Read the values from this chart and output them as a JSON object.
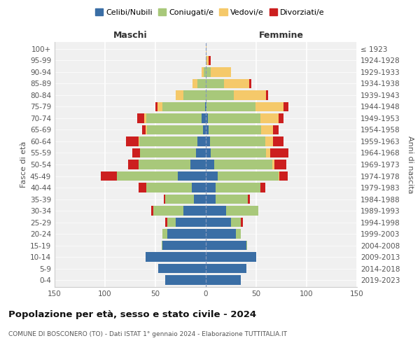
{
  "age_groups": [
    "0-4",
    "5-9",
    "10-14",
    "15-19",
    "20-24",
    "25-29",
    "30-34",
    "35-39",
    "40-44",
    "45-49",
    "50-54",
    "55-59",
    "60-64",
    "65-69",
    "70-74",
    "75-79",
    "80-84",
    "85-89",
    "90-94",
    "95-99",
    "100+"
  ],
  "birth_years": [
    "2019-2023",
    "2014-2018",
    "2009-2013",
    "2004-2008",
    "1999-2003",
    "1994-1998",
    "1989-1993",
    "1984-1988",
    "1979-1983",
    "1974-1978",
    "1969-1973",
    "1964-1968",
    "1959-1963",
    "1954-1958",
    "1949-1953",
    "1944-1948",
    "1939-1943",
    "1934-1938",
    "1929-1933",
    "1924-1928",
    "≤ 1923"
  ],
  "male": {
    "celibi": [
      40,
      47,
      60,
      43,
      38,
      30,
      22,
      12,
      14,
      28,
      15,
      10,
      8,
      3,
      4,
      1,
      0,
      0,
      0,
      0,
      0
    ],
    "coniugati": [
      0,
      0,
      0,
      1,
      5,
      8,
      30,
      28,
      45,
      60,
      52,
      55,
      58,
      55,
      55,
      42,
      22,
      8,
      2,
      0,
      0
    ],
    "vedovi": [
      0,
      0,
      0,
      0,
      0,
      0,
      0,
      0,
      0,
      0,
      0,
      0,
      1,
      2,
      2,
      5,
      8,
      5,
      2,
      0,
      0
    ],
    "divorziati": [
      0,
      0,
      0,
      0,
      0,
      2,
      2,
      2,
      8,
      16,
      10,
      8,
      12,
      3,
      7,
      2,
      0,
      0,
      0,
      0,
      0
    ]
  },
  "female": {
    "nubili": [
      35,
      40,
      50,
      40,
      30,
      25,
      20,
      10,
      10,
      12,
      8,
      5,
      4,
      3,
      2,
      1,
      0,
      0,
      0,
      0,
      0
    ],
    "coniugate": [
      0,
      0,
      0,
      1,
      5,
      10,
      32,
      32,
      44,
      60,
      58,
      55,
      55,
      52,
      52,
      48,
      28,
      18,
      5,
      1,
      0
    ],
    "vedove": [
      0,
      0,
      0,
      0,
      0,
      0,
      0,
      0,
      0,
      1,
      2,
      4,
      8,
      12,
      18,
      28,
      32,
      25,
      20,
      2,
      1
    ],
    "divorziate": [
      0,
      0,
      0,
      0,
      0,
      2,
      0,
      2,
      5,
      8,
      12,
      18,
      10,
      5,
      5,
      5,
      2,
      2,
      0,
      2,
      0
    ]
  },
  "colors": {
    "celibi": "#3A6EA5",
    "coniugati": "#A8C87A",
    "vedovi": "#F5C96A",
    "divorziati": "#CC1F1F"
  },
  "xlim": 150,
  "title": "Popolazione per età, sesso e stato civile - 2024",
  "subtitle": "COMUNE DI BOSCONERO (TO) - Dati ISTAT 1° gennaio 2024 - Elaborazione TUTTITALIA.IT",
  "ylabel_left": "Fasce di età",
  "ylabel_right": "Anni di nascita",
  "xlabel_male": "Maschi",
  "xlabel_female": "Femmine",
  "bg_color": "#F0F0F0",
  "grid_color": "#FFFFFF",
  "center_line_color": "#8899BB"
}
